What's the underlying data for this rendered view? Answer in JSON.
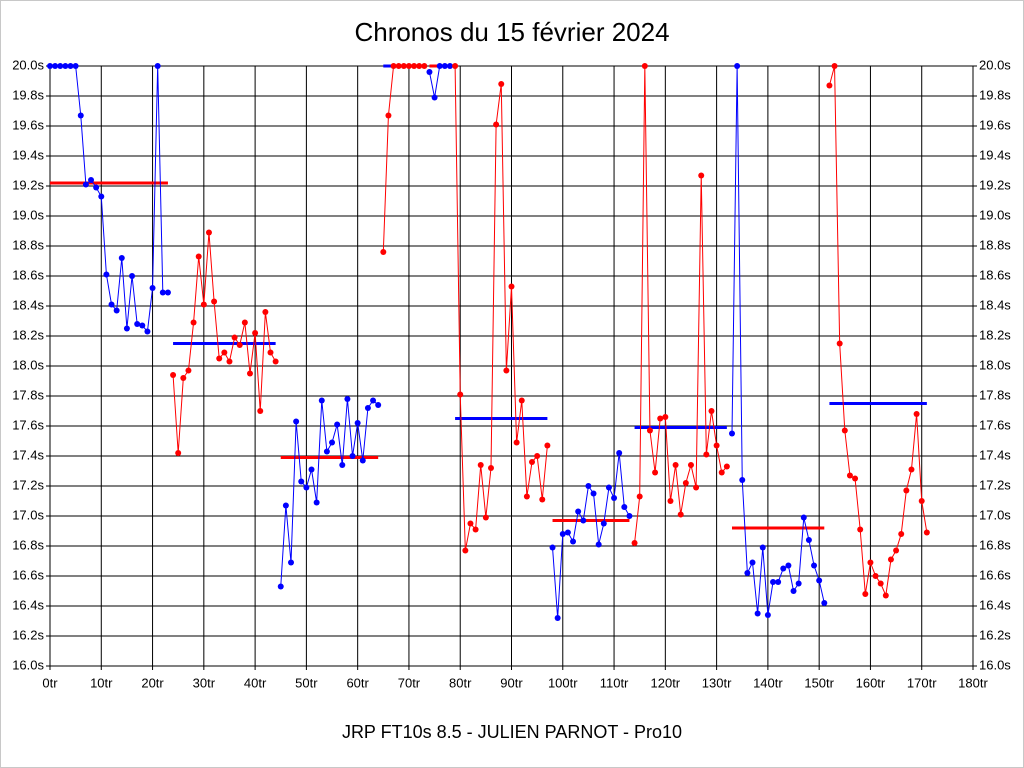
{
  "chart_data": {
    "type": "line",
    "title": "Chronos du 15 février 2024",
    "footer": "JRP FT10s 8.5 - JULIEN PARNOT - Pro10",
    "xlim": [
      0,
      180
    ],
    "xticks": [
      {
        "value": 0,
        "label": "0tr"
      },
      {
        "value": 10,
        "label": "10tr"
      },
      {
        "value": 20,
        "label": "20tr"
      },
      {
        "value": 30,
        "label": "30tr"
      },
      {
        "value": 40,
        "label": "40tr"
      },
      {
        "value": 50,
        "label": "50tr"
      },
      {
        "value": 60,
        "label": "60tr"
      },
      {
        "value": 70,
        "label": "70tr"
      },
      {
        "value": 80,
        "label": "80tr"
      },
      {
        "value": 90,
        "label": "90tr"
      },
      {
        "value": 100,
        "label": "100tr"
      },
      {
        "value": 110,
        "label": "110tr"
      },
      {
        "value": 120,
        "label": "120tr"
      },
      {
        "value": 130,
        "label": "130tr"
      },
      {
        "value": 140,
        "label": "140tr"
      },
      {
        "value": 150,
        "label": "150tr"
      },
      {
        "value": 160,
        "label": "160tr"
      },
      {
        "value": 170,
        "label": "170tr"
      },
      {
        "value": 180,
        "label": "180tr"
      }
    ],
    "ylim": [
      16,
      20
    ],
    "yticks": [
      {
        "value": 16,
        "label": "16.0s"
      },
      {
        "value": 16.2,
        "label": "16.2s"
      },
      {
        "value": 16.4,
        "label": "16.4s"
      },
      {
        "value": 16.6,
        "label": "16.6s"
      },
      {
        "value": 16.8,
        "label": "16.8s"
      },
      {
        "value": 17,
        "label": "17.0s"
      },
      {
        "value": 17.2,
        "label": "17.2s"
      },
      {
        "value": 17.4,
        "label": "17.4s"
      },
      {
        "value": 17.6,
        "label": "17.6s"
      },
      {
        "value": 17.8,
        "label": "17.8s"
      },
      {
        "value": 18,
        "label": "18.0s"
      },
      {
        "value": 18.2,
        "label": "18.2s"
      },
      {
        "value": 18.4,
        "label": "18.4s"
      },
      {
        "value": 18.6,
        "label": "18.6s"
      },
      {
        "value": 18.8,
        "label": "18.8s"
      },
      {
        "value": 19,
        "label": "19.0s"
      },
      {
        "value": 19.2,
        "label": "19.2s"
      },
      {
        "value": 19.4,
        "label": "19.4s"
      },
      {
        "value": 19.6,
        "label": "19.6s"
      },
      {
        "value": 19.8,
        "label": "19.8s"
      },
      {
        "value": 20,
        "label": "20.0s"
      }
    ],
    "grid": true,
    "series": [
      {
        "color": "#0000ff",
        "average_color": "#ff0000",
        "average": 19.22,
        "x": [
          0,
          1,
          2,
          3,
          4,
          5,
          6,
          7,
          8,
          9,
          10,
          11,
          12,
          13,
          14,
          15,
          16,
          17,
          18,
          19,
          20,
          21,
          22,
          23
        ],
        "values": [
          20,
          20,
          20,
          20,
          20,
          20,
          19.67,
          19.21,
          19.24,
          19.19,
          19.13,
          18.61,
          18.41,
          18.37,
          18.72,
          18.25,
          18.6,
          18.28,
          18.27,
          18.23,
          18.52,
          20,
          18.49,
          18.49
        ]
      },
      {
        "color": "#ff0000",
        "average_color": "#0000ff",
        "average": 18.15,
        "x": [
          24,
          25,
          26,
          27,
          28,
          29,
          30,
          31,
          32,
          33,
          34,
          35,
          36,
          37,
          38,
          39,
          40,
          41,
          42,
          43,
          44
        ],
        "values": [
          17.94,
          17.42,
          17.92,
          17.97,
          18.29,
          18.73,
          18.41,
          18.89,
          18.43,
          18.05,
          18.09,
          18.03,
          18.19,
          18.14,
          18.29,
          17.95,
          18.22,
          17.7,
          18.36,
          18.09,
          18.03
        ]
      },
      {
        "color": "#0000ff",
        "average_color": "#ff0000",
        "average": 17.39,
        "x": [
          45,
          46,
          47,
          48,
          49,
          50,
          51,
          52,
          53,
          54,
          55,
          56,
          57,
          58,
          59,
          60,
          61,
          62,
          63,
          64
        ],
        "values": [
          16.53,
          17.07,
          16.69,
          17.63,
          17.23,
          17.19,
          17.31,
          17.09,
          17.77,
          17.43,
          17.49,
          17.61,
          17.34,
          17.78,
          17.4,
          17.62,
          17.37,
          17.72,
          17.77,
          17.74
        ]
      },
      {
        "color": "#ff0000",
        "average_color": "#0000ff",
        "average": 20,
        "x": [
          65,
          66,
          67,
          68,
          69,
          70,
          71,
          72,
          73
        ],
        "values": [
          18.76,
          19.67,
          20,
          20,
          20,
          20,
          20,
          20,
          20
        ]
      },
      {
        "color": "#0000ff",
        "average_color": "#ff0000",
        "average": 20,
        "x": [
          74,
          75,
          76,
          77,
          78
        ],
        "values": [
          19.96,
          19.79,
          20,
          20,
          20
        ]
      },
      {
        "color": "#ff0000",
        "average_color": "#0000ff",
        "average": 17.65,
        "x": [
          79,
          80,
          81,
          82,
          83,
          84,
          85,
          86,
          87,
          88,
          89,
          90,
          91,
          92,
          93,
          94,
          95,
          96,
          97
        ],
        "values": [
          20,
          17.81,
          16.77,
          16.95,
          16.91,
          17.34,
          16.99,
          17.32,
          19.61,
          19.88,
          17.97,
          18.53,
          17.49,
          17.77,
          17.13,
          17.36,
          17.4,
          17.11,
          17.47
        ]
      },
      {
        "color": "#0000ff",
        "average_color": "#ff0000",
        "average": 16.97,
        "x": [
          98,
          99,
          100,
          101,
          102,
          103,
          104,
          105,
          106,
          107,
          108,
          109,
          110,
          111,
          112,
          113
        ],
        "values": [
          16.79,
          16.32,
          16.88,
          16.89,
          16.83,
          17.03,
          16.97,
          17.2,
          17.15,
          16.81,
          16.95,
          17.19,
          17.12,
          17.42,
          17.06,
          17
        ]
      },
      {
        "color": "#ff0000",
        "average_color": "#0000ff",
        "average": 17.59,
        "x": [
          114,
          115,
          116,
          117,
          118,
          119,
          120,
          121,
          122,
          123,
          124,
          125,
          126,
          127,
          128,
          129,
          130,
          131,
          132
        ],
        "values": [
          16.82,
          17.13,
          20,
          17.57,
          17.29,
          17.65,
          17.66,
          17.1,
          17.34,
          17.01,
          17.22,
          17.34,
          17.19,
          19.27,
          17.41,
          17.7,
          17.47,
          17.29,
          17.33
        ]
      },
      {
        "color": "#0000ff",
        "average_color": "#ff0000",
        "average": 16.92,
        "x": [
          133,
          134,
          135,
          136,
          137,
          138,
          139,
          140,
          141,
          142,
          143,
          144,
          145,
          146,
          147,
          148,
          149,
          150,
          151
        ],
        "values": [
          17.55,
          20,
          17.24,
          16.62,
          16.69,
          16.35,
          16.79,
          16.34,
          16.56,
          16.56,
          16.65,
          16.67,
          16.5,
          16.55,
          16.99,
          16.84,
          16.67,
          16.57,
          16.42
        ]
      },
      {
        "color": "#ff0000",
        "average_color": "#0000ff",
        "average": 17.75,
        "x": [
          152,
          153,
          154,
          155,
          156,
          157,
          158,
          159,
          160,
          161,
          162,
          163,
          164,
          165,
          166,
          167,
          168,
          169,
          170,
          171
        ],
        "values": [
          19.87,
          20,
          18.15,
          17.57,
          17.27,
          17.25,
          16.91,
          16.48,
          16.69,
          16.6,
          16.55,
          16.47,
          16.71,
          16.77,
          16.88,
          17.17,
          17.31,
          17.68,
          17.1,
          16.89
        ]
      }
    ]
  }
}
